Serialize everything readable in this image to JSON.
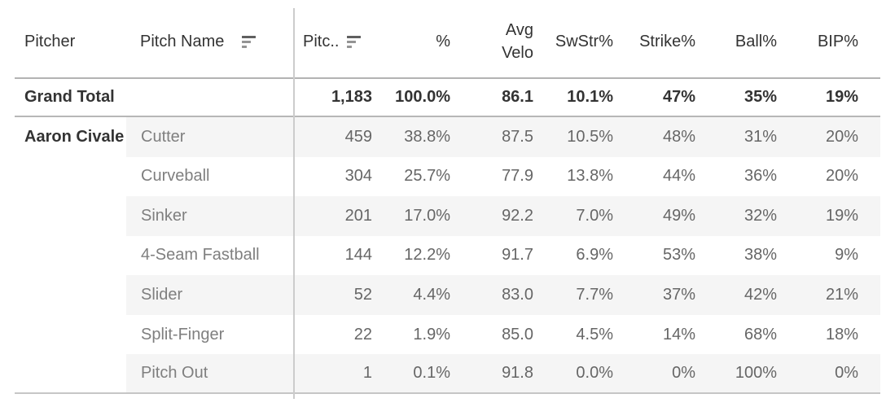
{
  "header": {
    "pitcher": "Pitcher",
    "pitch_name": "Pitch Name",
    "metrics": [
      "Pitc..",
      "%",
      "Avg Velo",
      "SwStr%",
      "Strike%",
      "Ball%",
      "BIP%"
    ]
  },
  "grand_total": {
    "label": "Grand Total",
    "values": [
      "1,183",
      "100.0%",
      "86.1",
      "10.1%",
      "47%",
      "35%",
      "19%"
    ]
  },
  "group_pitcher": "Aaron Civale",
  "rows": [
    {
      "pitch": "Cutter",
      "values": [
        "459",
        "38.8%",
        "87.5",
        "10.5%",
        "48%",
        "31%",
        "20%"
      ]
    },
    {
      "pitch": "Curveball",
      "values": [
        "304",
        "25.7%",
        "77.9",
        "13.8%",
        "44%",
        "36%",
        "20%"
      ]
    },
    {
      "pitch": "Sinker",
      "values": [
        "201",
        "17.0%",
        "92.2",
        "7.0%",
        "49%",
        "32%",
        "19%"
      ]
    },
    {
      "pitch": "4-Seam Fastball",
      "values": [
        "144",
        "12.2%",
        "91.7",
        "6.9%",
        "53%",
        "38%",
        "9%"
      ]
    },
    {
      "pitch": "Slider",
      "values": [
        "52",
        "4.4%",
        "83.0",
        "7.7%",
        "37%",
        "42%",
        "21%"
      ]
    },
    {
      "pitch": "Split-Finger",
      "values": [
        "22",
        "1.9%",
        "85.0",
        "4.5%",
        "14%",
        "68%",
        "18%"
      ]
    },
    {
      "pitch": "Pitch Out",
      "values": [
        "1",
        "0.1%",
        "91.8",
        "0.0%",
        "0%",
        "100%",
        "0%"
      ]
    }
  ],
  "icons": {
    "pitch_name_sort": "sort-descending-icon",
    "pitches_sort": "sort-descending-icon"
  },
  "colors": {
    "header_text": "#333333",
    "total_text": "#333333",
    "pitch_text": "#7f7f7f",
    "value_text": "#666666",
    "row_band": "#f5f5f5",
    "rule_header": "#b3b3b3",
    "rule_total": "#b7b7b7",
    "rule_bottom": "#c6c6c6",
    "divider": "#cccccc",
    "sort_bar_dark": "#5f5f5f",
    "sort_bar_light": "#949494",
    "background": "#ffffff"
  },
  "chart_data": {
    "type": "table",
    "title": "",
    "columns": [
      "Pitcher",
      "Pitch Name",
      "Pitches",
      "%",
      "Avg Velo",
      "SwStr%",
      "Strike%",
      "Ball%",
      "BIP%"
    ],
    "grand_total": [
      "Grand Total",
      "",
      1183,
      "100.0%",
      86.1,
      "10.1%",
      "47%",
      "35%",
      "19%"
    ],
    "rows": [
      [
        "Aaron Civale",
        "Cutter",
        459,
        "38.8%",
        87.5,
        "10.5%",
        "48%",
        "31%",
        "20%"
      ],
      [
        "Aaron Civale",
        "Curveball",
        304,
        "25.7%",
        77.9,
        "13.8%",
        "44%",
        "36%",
        "20%"
      ],
      [
        "Aaron Civale",
        "Sinker",
        201,
        "17.0%",
        92.2,
        "7.0%",
        "49%",
        "32%",
        "19%"
      ],
      [
        "Aaron Civale",
        "4-Seam Fastball",
        144,
        "12.2%",
        91.7,
        "6.9%",
        "53%",
        "38%",
        "9%"
      ],
      [
        "Aaron Civale",
        "Slider",
        52,
        "4.4%",
        83.0,
        "7.7%",
        "37%",
        "42%",
        "21%"
      ],
      [
        "Aaron Civale",
        "Split-Finger",
        22,
        "1.9%",
        85.0,
        "4.5%",
        "14%",
        "68%",
        "18%"
      ],
      [
        "Aaron Civale",
        "Pitch Out",
        1,
        "0.1%",
        91.8,
        "0.0%",
        "0%",
        "100%",
        "0%"
      ]
    ]
  }
}
